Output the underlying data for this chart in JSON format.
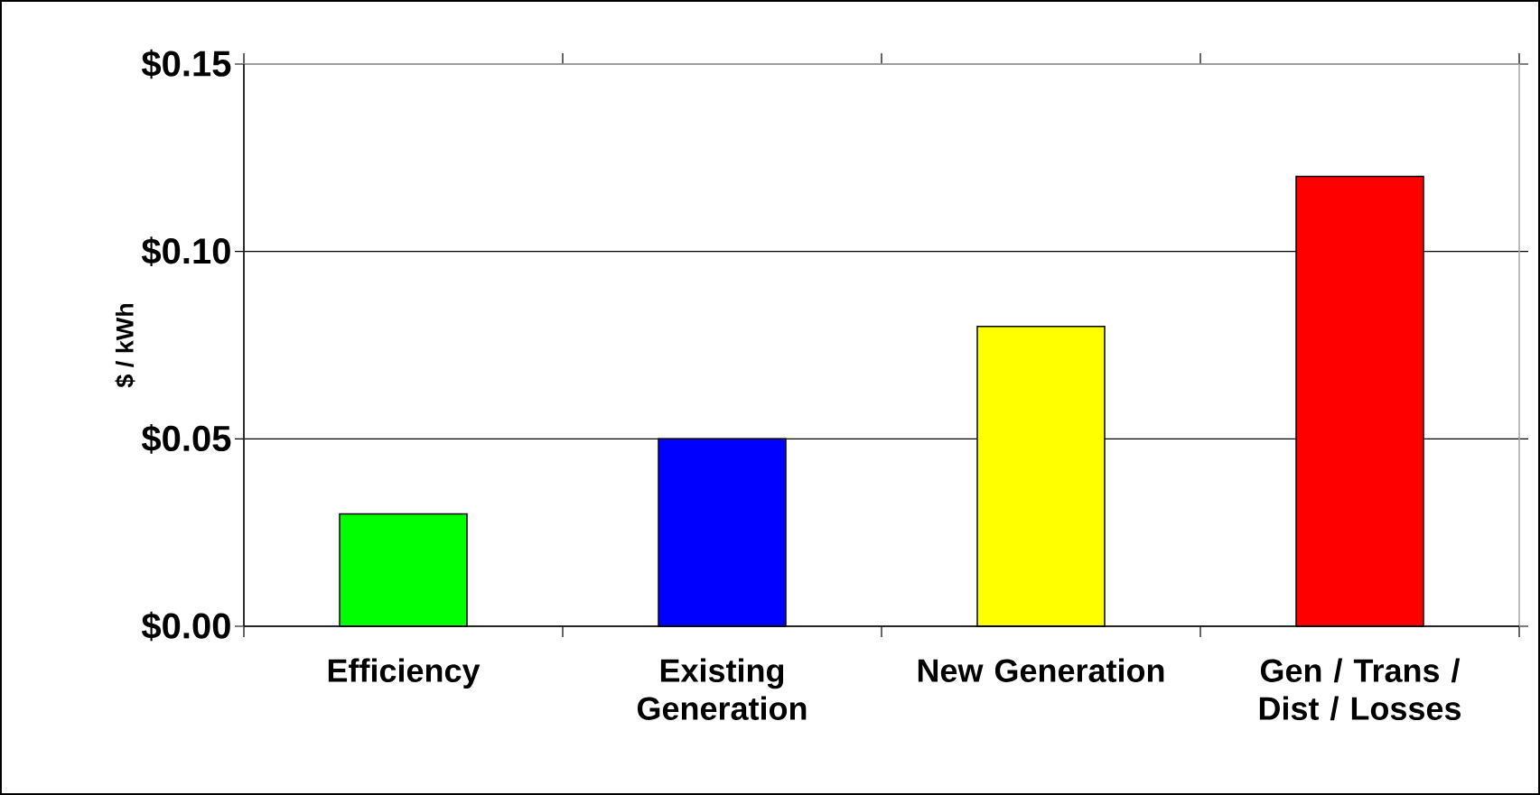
{
  "chart_data": {
    "type": "bar",
    "ylabel": "$ / kWh",
    "categories": [
      "Efficiency",
      "Existing Generation",
      "New Generation",
      "Gen / Trans / Dist / Losses"
    ],
    "values": [
      0.03,
      0.05,
      0.08,
      0.12
    ],
    "colors": [
      "#00ff00",
      "#0000ff",
      "#ffff00",
      "#ff0000"
    ],
    "ylim": [
      0,
      0.15
    ],
    "yticks": [
      {
        "value": 0,
        "label": "$0.00"
      },
      {
        "value": 0.05,
        "label": "$0.05"
      },
      {
        "value": 0.1,
        "label": "$0.10"
      },
      {
        "value": 0.15,
        "label": "$0.15"
      }
    ],
    "grid": "y"
  }
}
